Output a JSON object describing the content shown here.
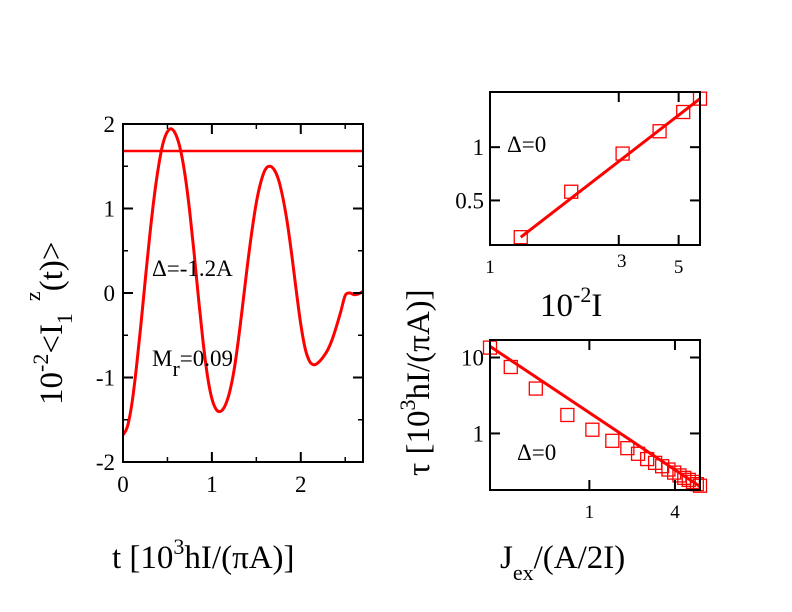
{
  "colors": {
    "series": "#ff0000",
    "axes": "#000000",
    "background": "#ffffff"
  },
  "chart_data": [
    {
      "type": "line",
      "xlim": [
        0,
        2.7
      ],
      "ylim": [
        -2,
        2
      ],
      "xticks": [
        "0",
        "1",
        "2"
      ],
      "yticks": [
        "2",
        "1",
        "0",
        "-1",
        "-2"
      ],
      "xlabel": {
        "pre": "t [10",
        "sup": "3",
        "post": "hI/(πA)]"
      },
      "ylabel": {
        "pre": "10",
        "sup1": "-2",
        "mid": "<I",
        "sub": "1",
        "sup2": "z",
        "post": "(t)>"
      },
      "annotations": {
        "delta": "Δ=-1.2A",
        "mr_main": "M",
        "mr_sub": "r",
        "mr_rest": "=0.09"
      },
      "reference_line_y": 1.68,
      "series": [
        {
          "x": [
            0.0,
            0.05,
            0.1,
            0.15,
            0.2,
            0.25,
            0.3,
            0.35,
            0.4,
            0.45,
            0.5,
            0.55,
            0.6,
            0.65,
            0.7,
            0.75,
            0.8,
            0.85,
            0.9,
            0.95,
            1.0,
            1.05,
            1.1,
            1.15,
            1.2,
            1.25,
            1.3,
            1.35,
            1.4,
            1.45,
            1.5,
            1.55,
            1.6,
            1.65,
            1.7,
            1.75,
            1.8,
            1.85,
            1.9,
            1.95,
            2.0,
            2.05,
            2.1,
            2.15,
            2.2,
            2.25,
            2.3,
            2.35,
            2.4,
            2.45,
            2.5,
            2.55,
            2.6,
            2.65,
            2.7
          ],
          "values": [
            -1.68,
            -1.58,
            -1.31,
            -0.89,
            -0.39,
            0.15,
            0.67,
            1.13,
            1.5,
            1.77,
            1.91,
            1.94,
            1.86,
            1.68,
            1.38,
            0.97,
            0.47,
            -0.07,
            -0.57,
            -0.98,
            -1.25,
            -1.38,
            -1.4,
            -1.33,
            -1.17,
            -0.91,
            -0.54,
            -0.11,
            0.33,
            0.73,
            1.07,
            1.31,
            1.46,
            1.5,
            1.46,
            1.34,
            1.12,
            0.82,
            0.44,
            0.02,
            -0.37,
            -0.66,
            -0.81,
            -0.85,
            -0.82,
            -0.76,
            -0.68,
            -0.56,
            -0.4,
            -0.22,
            -0.03,
            0.0,
            -0.02,
            -0.01,
            0.02
          ]
        }
      ]
    },
    {
      "type": "scatter",
      "scale": "log-log",
      "xlim": [
        1,
        6
      ],
      "ylim": [
        0.28,
        2.05
      ],
      "xticks": [
        {
          "v": 1,
          "label": "1"
        },
        {
          "v": 3,
          "label": "3"
        },
        {
          "v": 5,
          "label": "5"
        }
      ],
      "yticks": [
        {
          "v": 1,
          "label": "1"
        },
        {
          "v": 0.5,
          "label": "0.5"
        }
      ],
      "xlabel": {
        "pre": "10",
        "sup": "-2",
        "post": "I"
      },
      "annotation": "Δ=0",
      "points": {
        "x": [
          1.3,
          2.0,
          3.1,
          4.25,
          5.2,
          6.0
        ],
        "y": [
          0.31,
          0.56,
          0.92,
          1.23,
          1.58,
          1.88
        ]
      },
      "fit": {
        "x": [
          1.3,
          6.0
        ],
        "y": [
          0.31,
          1.88
        ]
      }
    },
    {
      "type": "scatter",
      "scale": "log-log",
      "xlim": [
        0.2,
        6.0
      ],
      "ylim": [
        0.18,
        17
      ],
      "xticks": [
        {
          "v": 1,
          "label": "1"
        },
        {
          "v": 4,
          "label": "4"
        }
      ],
      "yticks": [
        {
          "v": 10,
          "label": "10"
        },
        {
          "v": 1,
          "label": "1"
        }
      ],
      "xlabel": {
        "pre": "J",
        "sub": "ex",
        "post": "/(A/2I)"
      },
      "annotation": "Δ=0",
      "points": {
        "x": [
          0.2,
          0.28,
          0.42,
          0.7,
          1.05,
          1.45,
          1.85,
          2.2,
          2.55,
          2.9,
          3.25,
          3.6,
          3.95,
          4.3,
          4.65,
          5.0,
          5.35,
          5.7,
          6.0
        ],
        "y": [
          13.5,
          7.5,
          3.9,
          1.75,
          1.12,
          0.8,
          0.64,
          0.54,
          0.46,
          0.41,
          0.37,
          0.335,
          0.305,
          0.28,
          0.26,
          0.245,
          0.23,
          0.215,
          0.205
        ]
      },
      "fit": {
        "x": [
          0.2,
          6.0
        ],
        "y": [
          14.0,
          0.2
        ]
      }
    }
  ],
  "shared_ylabel": {
    "pre": "τ [10",
    "sup": "3",
    "post": "hI/(πA)]"
  }
}
